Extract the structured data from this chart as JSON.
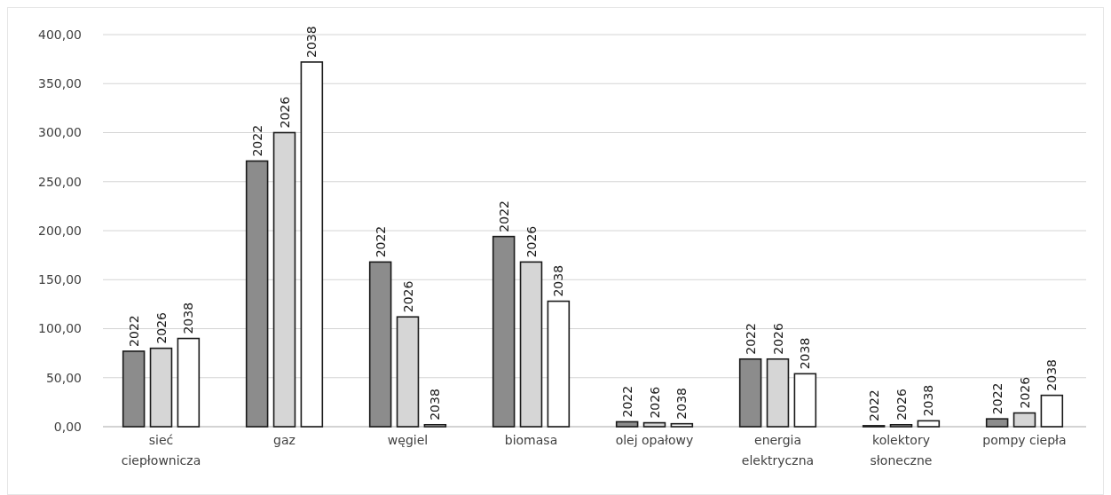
{
  "chart_data": {
    "type": "bar",
    "categories": [
      "sieć ciepłownicza",
      "gaz",
      "węgiel",
      "biomasa",
      "olej opałowy",
      "energia elektryczna",
      "kolektory słoneczne",
      "pompy ciepła"
    ],
    "series": [
      {
        "name": "2022",
        "color": "#8c8c8c",
        "values": [
          77,
          271,
          168,
          194,
          5,
          69,
          1,
          8
        ]
      },
      {
        "name": "2026",
        "color": "#d6d6d6",
        "values": [
          80,
          300,
          112,
          168,
          4,
          69,
          2,
          14
        ]
      },
      {
        "name": "2038",
        "color": "#ffffff",
        "values": [
          90,
          372,
          2,
          128,
          3,
          54,
          6,
          32
        ]
      }
    ],
    "ylim": [
      0,
      400
    ],
    "yticks": [
      {
        "value": 0,
        "label": "0,00"
      },
      {
        "value": 50,
        "label": "50,00"
      },
      {
        "value": 100,
        "label": "100,00"
      },
      {
        "value": 150,
        "label": "150,00"
      },
      {
        "value": 200,
        "label": "200,00"
      },
      {
        "value": 250,
        "label": "250,00"
      },
      {
        "value": 300,
        "label": "300,00"
      },
      {
        "value": 350,
        "label": "350,00"
      },
      {
        "value": 400,
        "label": "400,00"
      }
    ],
    "grid": "y"
  }
}
